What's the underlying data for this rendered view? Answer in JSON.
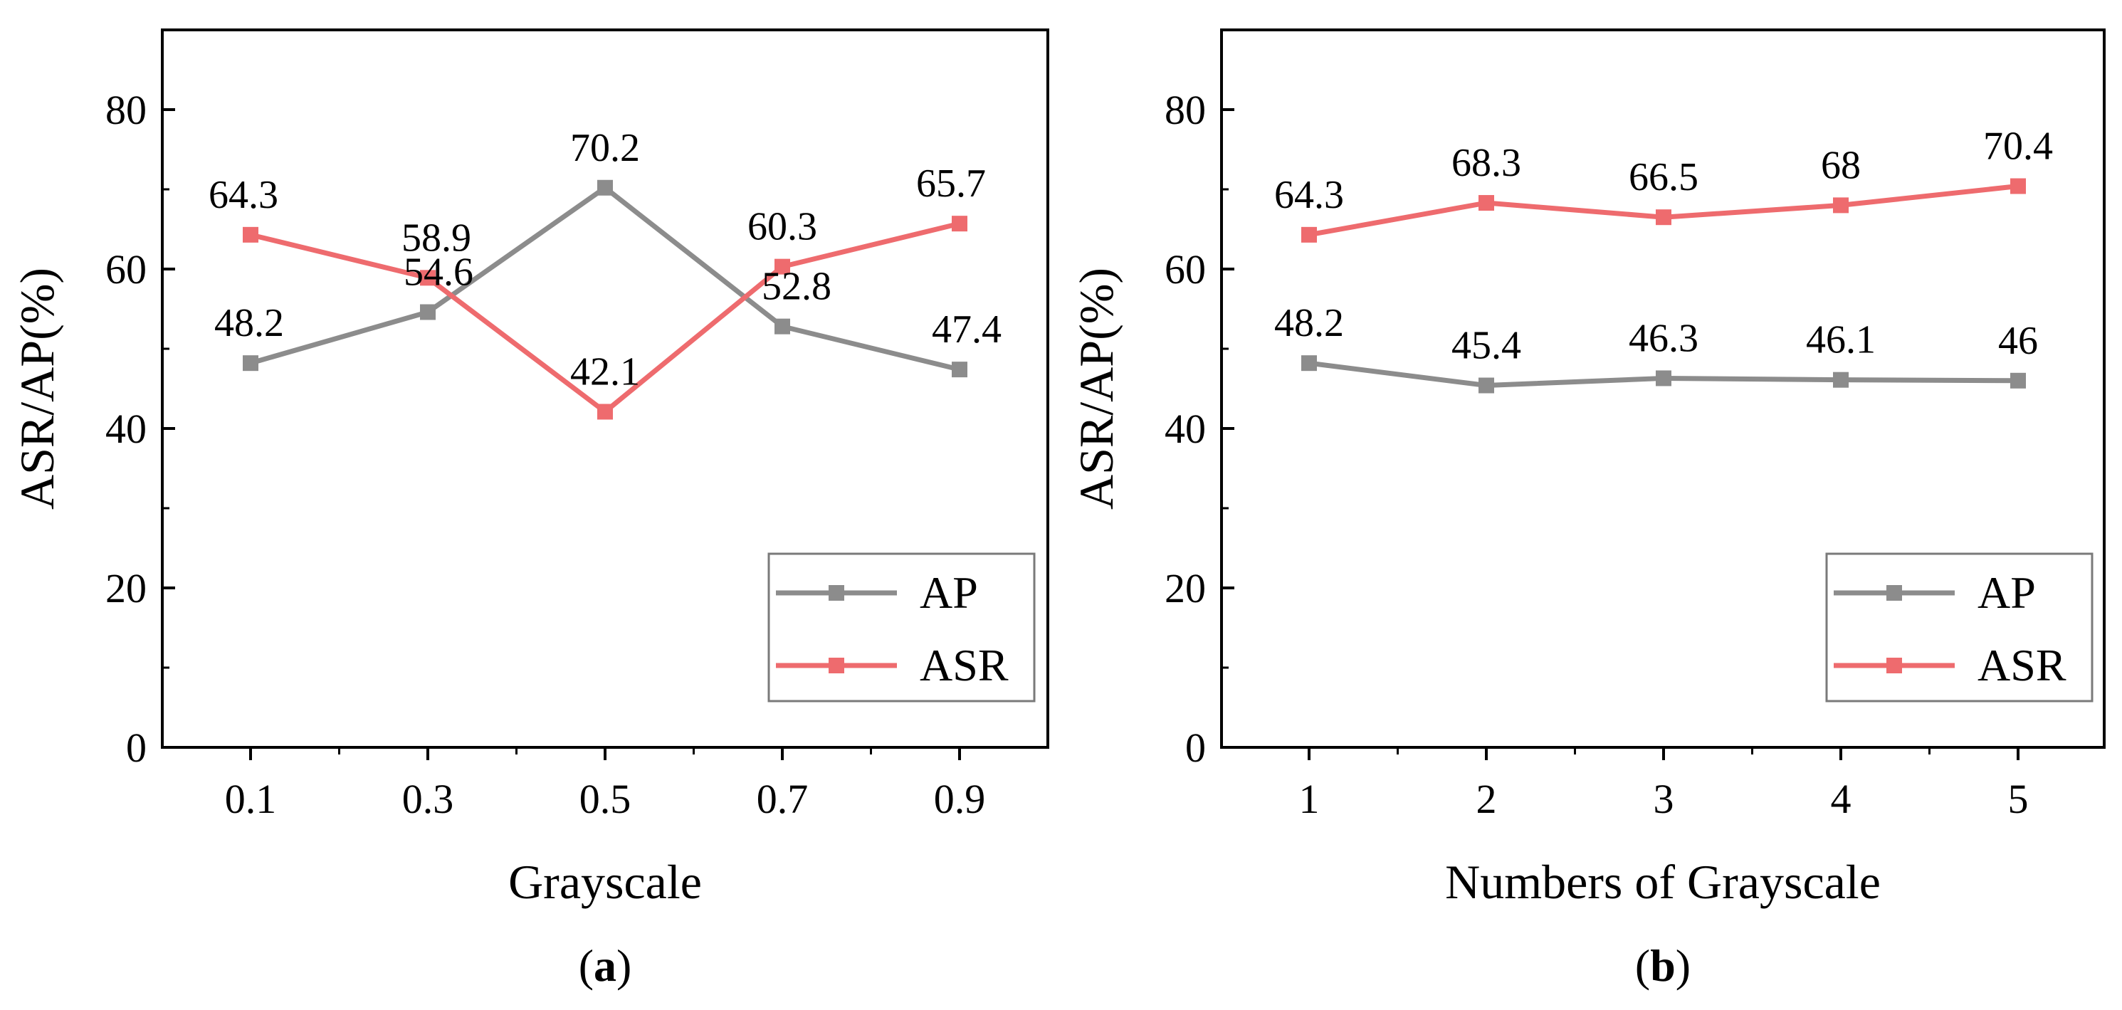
{
  "chart_data": [
    {
      "type": "line",
      "panel_label": "a",
      "xlabel": "Grayscale",
      "ylabel": "ASR/AP(%)",
      "categories": [
        "0.1",
        "0.3",
        "0.5",
        "0.7",
        "0.9"
      ],
      "ylim": [
        0,
        90
      ],
      "yticks": [
        0,
        20,
        40,
        60,
        80
      ],
      "legend_position": "bottom-right",
      "grid": false,
      "series": [
        {
          "name": "AP",
          "color": "#8c8c8c",
          "values": [
            48.2,
            54.6,
            70.2,
            52.8,
            47.4
          ],
          "labels": [
            "48.2",
            "54.6",
            "70.2",
            "52.8",
            "47.4"
          ]
        },
        {
          "name": "ASR",
          "color": "#ee6b6e",
          "values": [
            64.3,
            58.9,
            42.1,
            60.3,
            65.7
          ],
          "labels": [
            "64.3",
            "58.9",
            "42.1",
            "60.3",
            "65.7"
          ]
        }
      ]
    },
    {
      "type": "line",
      "panel_label": "b",
      "xlabel": "Numbers of Grayscale",
      "ylabel": "ASR/AP(%)",
      "categories": [
        "1",
        "2",
        "3",
        "4",
        "5"
      ],
      "ylim": [
        0,
        90
      ],
      "yticks": [
        0,
        20,
        40,
        60,
        80
      ],
      "legend_position": "bottom-right",
      "grid": false,
      "series": [
        {
          "name": "AP",
          "color": "#8c8c8c",
          "values": [
            48.2,
            45.4,
            46.3,
            46.1,
            46
          ],
          "labels": [
            "48.2",
            "45.4",
            "46.3",
            "46.1",
            "46"
          ]
        },
        {
          "name": "ASR",
          "color": "#ee6b6e",
          "values": [
            64.3,
            68.3,
            66.5,
            68,
            70.4
          ],
          "labels": [
            "64.3",
            "68.3",
            "66.5",
            "68",
            "70.4"
          ]
        }
      ]
    }
  ]
}
